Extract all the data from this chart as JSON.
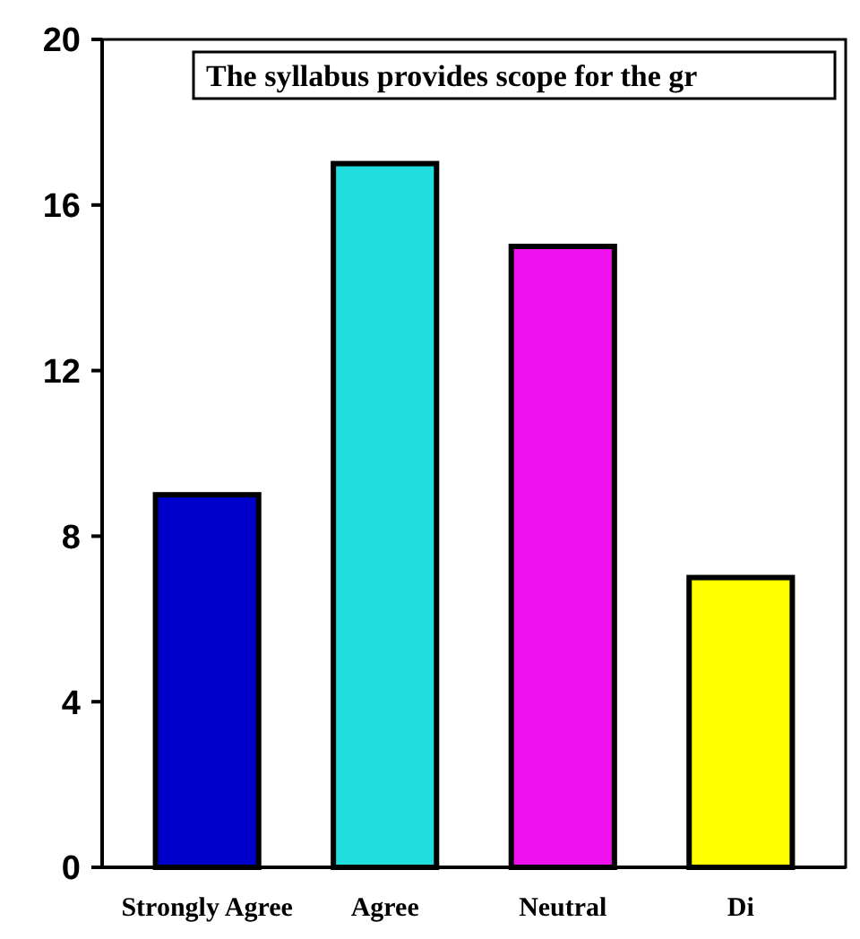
{
  "chart_data": {
    "type": "bar",
    "title": "The syllabus provides scope for the gr",
    "categories": [
      "Strongly Agree",
      "Agree",
      "Neutral",
      "Di"
    ],
    "values": [
      9,
      17,
      15,
      7
    ],
    "colors": [
      "#0000cc",
      "#22dddd",
      "#ee11ee",
      "#ffff00"
    ],
    "ylim": [
      0,
      20
    ],
    "yticks": [
      0,
      4,
      8,
      12,
      16,
      20
    ],
    "grid": false
  }
}
